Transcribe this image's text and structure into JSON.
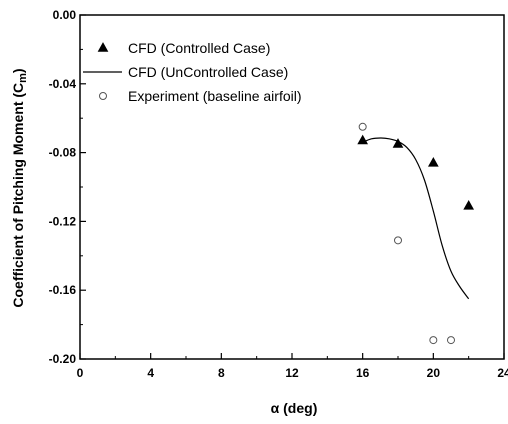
{
  "chart_data": {
    "type": "scatter",
    "title": "",
    "xlabel": "α (deg)",
    "ylabel": "Coefficient of Pitching Moment (C",
    "ylabel_sub": "m",
    "ylabel_close": ")",
    "xlim": [
      0,
      24
    ],
    "ylim": [
      -0.2,
      0.0
    ],
    "x_ticks": [
      0,
      4,
      8,
      12,
      16,
      20,
      24
    ],
    "x_tick_labels": [
      "0",
      "4",
      "8",
      "12",
      "16",
      "20",
      "24"
    ],
    "y_ticks": [
      0.0,
      -0.04,
      -0.08,
      -0.12,
      -0.16,
      -0.2
    ],
    "y_tick_labels": [
      "0.00",
      "-0.04",
      "-0.08",
      "-0.12",
      "-0.16",
      "-0.20"
    ],
    "grid": false,
    "legend_position": "top-left",
    "series": [
      {
        "name": "CFD (Controlled Case)",
        "marker": "filled-triangle",
        "color": "#000000",
        "x": [
          16,
          18,
          20,
          22
        ],
        "y": [
          -0.073,
          -0.075,
          -0.086,
          -0.111
        ]
      },
      {
        "name": "CFD (UnControlled Case)",
        "marker": "line",
        "color": "#000000",
        "x": [
          16,
          16.5,
          17,
          17.5,
          18,
          18.5,
          19,
          19.5,
          20,
          20.5,
          21,
          21.5,
          22
        ],
        "y": [
          -0.074,
          -0.072,
          -0.0715,
          -0.072,
          -0.0735,
          -0.077,
          -0.084,
          -0.096,
          -0.114,
          -0.134,
          -0.149,
          -0.158,
          -0.165
        ]
      },
      {
        "name": "Experiment (baseline airfoil)",
        "marker": "open-circle",
        "color": "#000000",
        "x": [
          16,
          18,
          20,
          21
        ],
        "y": [
          -0.065,
          -0.131,
          -0.189,
          -0.189
        ]
      }
    ]
  }
}
